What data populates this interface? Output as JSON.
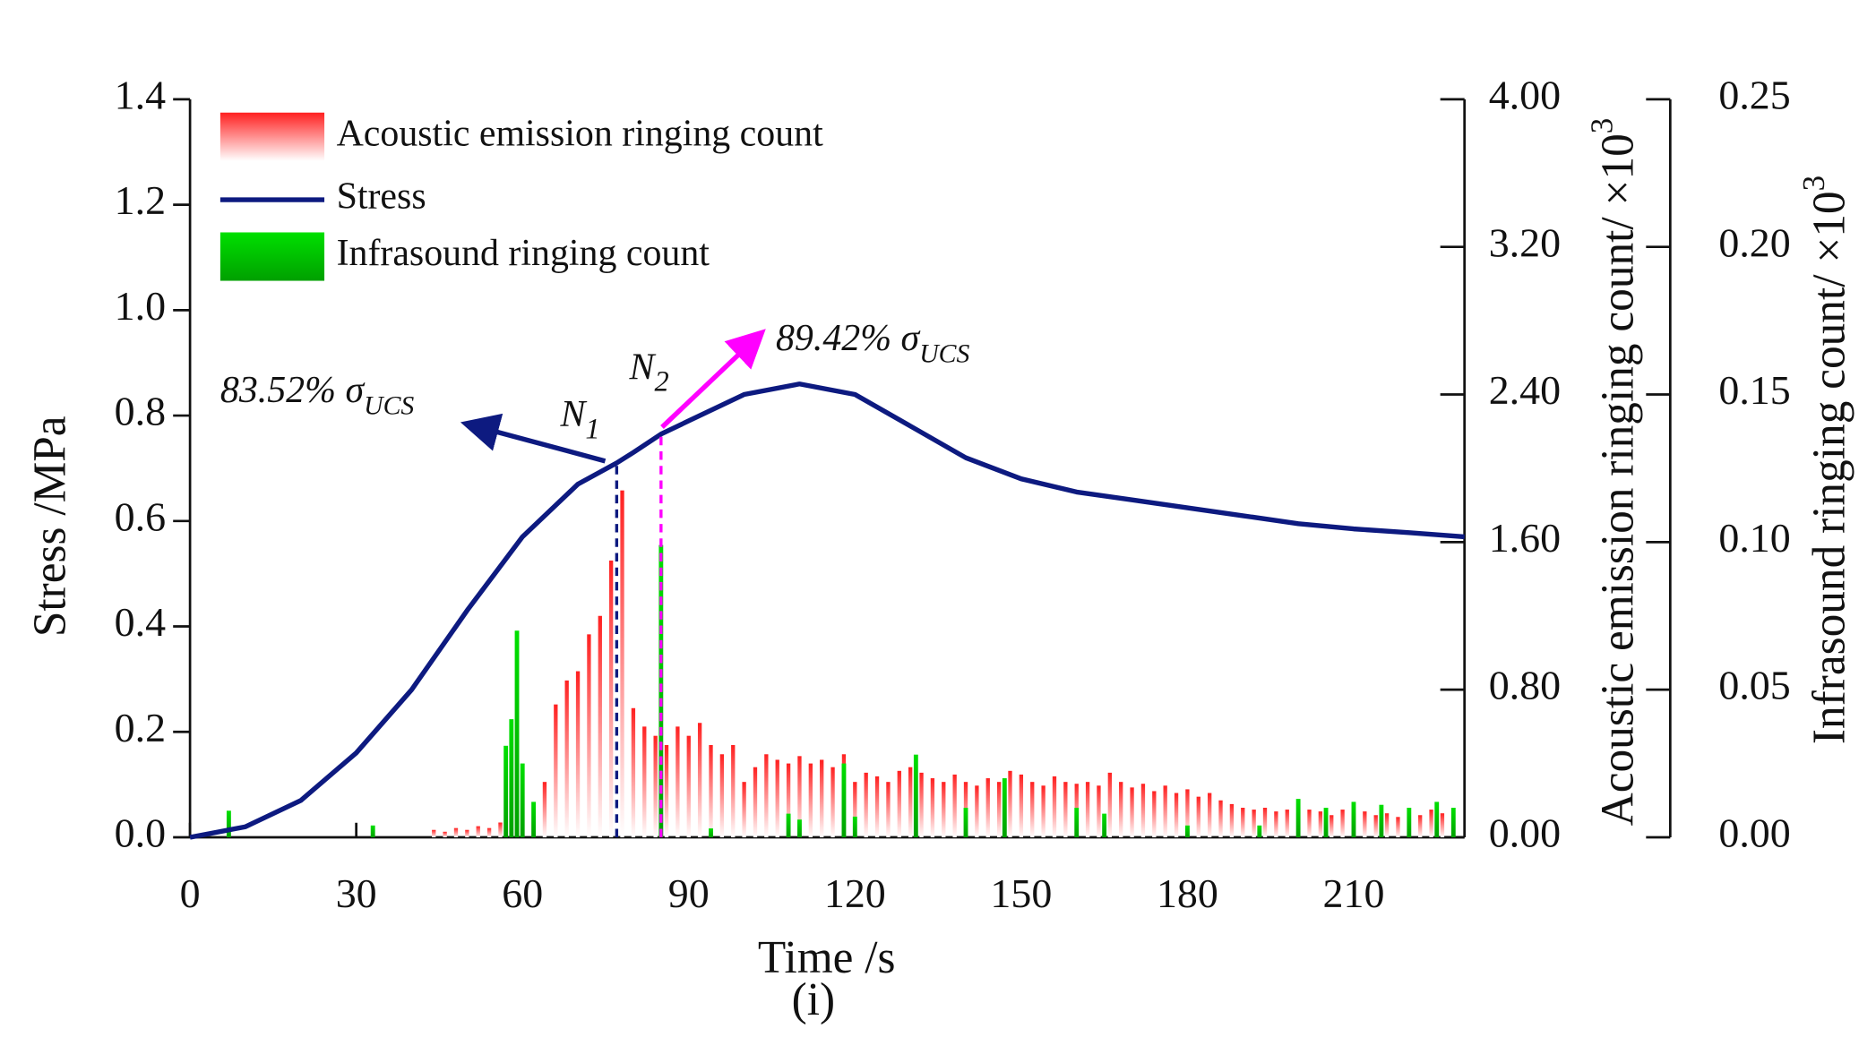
{
  "chart_data": {
    "type": "bar-line",
    "x_label": "Time /s",
    "y_label": "Stress /MPa",
    "y2_label": {
      "text": "Acoustic emission ringing count/ ×10",
      "sup": "3"
    },
    "y3_label": {
      "text": "Infrasound  ringing count/ ×10",
      "sup": "3"
    },
    "caption": "(i)",
    "xlim": [
      0,
      230
    ],
    "xticks": [
      0,
      30,
      60,
      90,
      120,
      150,
      180,
      210
    ],
    "ylim": [
      0,
      1.4
    ],
    "yticks": [
      {
        "value": 0,
        "label": "0.0"
      },
      0.2,
      0.4,
      0.6,
      0.8,
      {
        "value": 1,
        "label": "1.0"
      },
      1.2,
      1.4
    ],
    "y2lim": [
      0,
      4
    ],
    "y2ticks": [
      {
        "value": 0,
        "label": "0.00"
      },
      {
        "value": 0.8,
        "label": "0.80"
      },
      {
        "value": 1.6,
        "label": "1.60"
      },
      {
        "value": 2.4,
        "label": "2.40"
      },
      {
        "value": 3.2,
        "label": "3.20"
      },
      {
        "value": 4,
        "label": "4.00"
      }
    ],
    "y3lim": [
      0,
      0.25
    ],
    "y3ticks": [
      {
        "value": 0,
        "label": "0.00"
      },
      0.05,
      {
        "value": 0.1,
        "label": "0.10"
      },
      0.15,
      {
        "value": 0.2,
        "label": "0.20"
      },
      0.25
    ],
    "series": [
      {
        "name": "Acoustic emission ringing count",
        "type": "bar",
        "axis": "y2",
        "color": "#ff2020",
        "x": [
          44,
          46,
          48,
          50,
          52,
          54,
          56,
          58,
          60,
          62,
          64,
          66,
          68,
          70,
          72,
          74,
          76,
          78,
          80,
          82,
          84,
          86,
          88,
          90,
          92,
          94,
          96,
          98,
          100,
          102,
          104,
          106,
          108,
          110,
          112,
          114,
          116,
          118,
          120,
          122,
          124,
          126,
          128,
          130,
          132,
          134,
          136,
          138,
          140,
          142,
          144,
          146,
          148,
          150,
          152,
          154,
          156,
          158,
          160,
          162,
          164,
          166,
          168,
          170,
          172,
          174,
          176,
          178,
          180,
          182,
          184,
          186,
          188,
          190,
          192,
          194,
          196,
          198,
          200,
          202,
          204,
          206,
          208,
          210,
          212,
          214,
          216,
          218,
          220,
          222,
          224,
          226,
          228
        ],
        "values": [
          0.04,
          0.03,
          0.05,
          0.04,
          0.06,
          0.05,
          0.08,
          0.1,
          0.12,
          0.08,
          0.3,
          0.72,
          0.85,
          0.9,
          1.1,
          1.2,
          1.5,
          1.88,
          0.7,
          0.6,
          0.55,
          0.5,
          0.6,
          0.55,
          0.62,
          0.5,
          0.45,
          0.5,
          0.3,
          0.38,
          0.45,
          0.42,
          0.4,
          0.44,
          0.4,
          0.42,
          0.38,
          0.45,
          0.3,
          0.35,
          0.33,
          0.3,
          0.36,
          0.38,
          0.35,
          0.32,
          0.3,
          0.34,
          0.3,
          0.28,
          0.32,
          0.3,
          0.36,
          0.34,
          0.3,
          0.28,
          0.33,
          0.3,
          0.29,
          0.3,
          0.28,
          0.35,
          0.3,
          0.27,
          0.29,
          0.25,
          0.28,
          0.24,
          0.26,
          0.22,
          0.24,
          0.2,
          0.18,
          0.16,
          0.15,
          0.16,
          0.14,
          0.15,
          0.13,
          0.15,
          0.14,
          0.12,
          0.15,
          0.13,
          0.14,
          0.12,
          0.13,
          0.11,
          0.14,
          0.12,
          0.15,
          0.13,
          0.14
        ]
      },
      {
        "name": "Stress",
        "type": "line",
        "axis": "y",
        "color": "#0d1a80",
        "x": [
          0,
          10,
          20,
          30,
          40,
          50,
          60,
          70,
          77,
          80,
          85,
          90,
          100,
          110,
          120,
          130,
          140,
          150,
          160,
          170,
          180,
          190,
          200,
          210,
          220,
          230
        ],
        "values": [
          0,
          0.02,
          0.07,
          0.16,
          0.28,
          0.43,
          0.57,
          0.67,
          0.71,
          0.73,
          0.765,
          0.79,
          0.84,
          0.86,
          0.84,
          0.78,
          0.72,
          0.68,
          0.655,
          0.64,
          0.625,
          0.61,
          0.595,
          0.585,
          0.578,
          0.57
        ]
      },
      {
        "name": "Infrasound ringing count",
        "type": "bar",
        "axis": "y3",
        "color": "#00d000",
        "x": [
          7,
          33,
          57,
          58,
          59,
          60,
          62,
          85,
          94,
          108,
          110,
          118,
          120,
          131,
          140,
          147,
          160,
          165,
          180,
          193,
          200,
          205,
          210,
          215,
          220,
          225,
          228
        ],
        "values": [
          0.009,
          0.004,
          0.031,
          0.04,
          0.07,
          0.025,
          0.012,
          0.099,
          0.003,
          0.008,
          0.006,
          0.025,
          0.007,
          0.028,
          0.01,
          0.02,
          0.01,
          0.008,
          0.004,
          0.004,
          0.013,
          0.01,
          0.012,
          0.011,
          0.01,
          0.012,
          0.01
        ]
      }
    ],
    "annotations": [
      {
        "text": "83.52% σ",
        "sub": "UCS"
      },
      {
        "text": "N",
        "sub": "1",
        "x": 77
      },
      {
        "text": "N",
        "sub": "2",
        "x": 85
      },
      {
        "text": "89.42% σ",
        "sub": "UCS"
      }
    ]
  }
}
